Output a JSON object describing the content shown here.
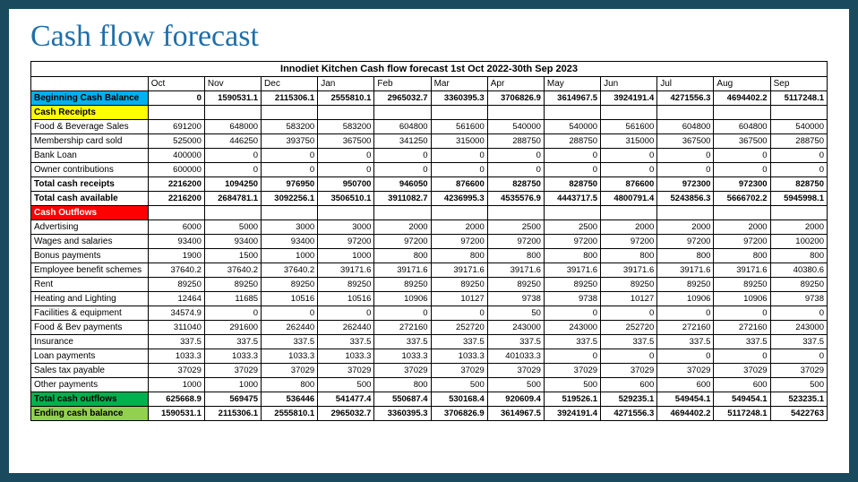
{
  "title": "Cash flow forecast",
  "table_title": "Innodiet Kitchen Cash flow forecast 1st Oct 2022-30th Sep 2023",
  "months": [
    "Oct",
    "Nov",
    "Dec",
    "Jan",
    "Feb",
    "Mar",
    "Apr",
    "May",
    "Jun",
    "Jul",
    "Aug",
    "Sep"
  ],
  "colors": {
    "page_bg": "#1a4a5e",
    "title_color": "#1f6ea8",
    "border": "#000000",
    "section_begin": "#00b0f0",
    "section_receipts": "#ffff00",
    "section_outflows": "#ff0000",
    "section_total_out": "#00b050",
    "section_end": "#92d050"
  },
  "fonts": {
    "title_pt": 34,
    "cell_pt": 9.5,
    "header_pt": 10
  },
  "rows": [
    {
      "type": "section",
      "bg": "cyan",
      "label": "Beginning Cash Balance",
      "bold": true,
      "values": [
        "0",
        "1590531.1",
        "2115306.1",
        "2555810.1",
        "2965032.7",
        "3360395.3",
        "3706826.9",
        "3614967.5",
        "3924191.4",
        "4271556.3",
        "4694402.2",
        "5117248.1"
      ]
    },
    {
      "type": "section",
      "bg": "yellow",
      "label": "Cash Receipts",
      "bold": true,
      "values": null
    },
    {
      "type": "data",
      "label": "Food & Beverage Sales",
      "values": [
        "691200",
        "648000",
        "583200",
        "583200",
        "604800",
        "561600",
        "540000",
        "540000",
        "561600",
        "604800",
        "604800",
        "540000"
      ]
    },
    {
      "type": "data",
      "label": "Membership card sold",
      "values": [
        "525000",
        "446250",
        "393750",
        "367500",
        "341250",
        "315000",
        "288750",
        "288750",
        "315000",
        "367500",
        "367500",
        "288750"
      ]
    },
    {
      "type": "data",
      "label": "Bank Loan",
      "values": [
        "400000",
        "0",
        "0",
        "0",
        "0",
        "0",
        "0",
        "0",
        "0",
        "0",
        "0",
        "0"
      ]
    },
    {
      "type": "data",
      "label": "Owner contributions",
      "values": [
        "600000",
        "0",
        "0",
        "0",
        "0",
        "0",
        "0",
        "0",
        "0",
        "0",
        "0",
        "0"
      ]
    },
    {
      "type": "data",
      "label": "Total cash receipts",
      "bold": true,
      "values": [
        "2216200",
        "1094250",
        "976950",
        "950700",
        "946050",
        "876600",
        "828750",
        "828750",
        "876600",
        "972300",
        "972300",
        "828750"
      ]
    },
    {
      "type": "data",
      "label": "Total cash available",
      "bold": true,
      "values": [
        "2216200",
        "2684781.1",
        "3092256.1",
        "3506510.1",
        "3911082.7",
        "4236995.3",
        "4535576.9",
        "4443717.5",
        "4800791.4",
        "5243856.3",
        "5666702.2",
        "5945998.1"
      ]
    },
    {
      "type": "section",
      "bg": "red",
      "label": "Cash Outflows",
      "bold": true,
      "values": null
    },
    {
      "type": "data",
      "label": "Advertising",
      "values": [
        "6000",
        "5000",
        "3000",
        "3000",
        "2000",
        "2000",
        "2500",
        "2500",
        "2000",
        "2000",
        "2000",
        "2000"
      ]
    },
    {
      "type": "data",
      "label": "Wages and salaries",
      "values": [
        "93400",
        "93400",
        "93400",
        "97200",
        "97200",
        "97200",
        "97200",
        "97200",
        "97200",
        "97200",
        "97200",
        "100200"
      ]
    },
    {
      "type": "data",
      "label": "Bonus payments",
      "values": [
        "1900",
        "1500",
        "1000",
        "1000",
        "800",
        "800",
        "800",
        "800",
        "800",
        "800",
        "800",
        "800"
      ]
    },
    {
      "type": "data",
      "label": "Employee benefit schemes",
      "values": [
        "37640.2",
        "37640.2",
        "37640.2",
        "39171.6",
        "39171.6",
        "39171.6",
        "39171.6",
        "39171.6",
        "39171.6",
        "39171.6",
        "39171.6",
        "40380.6"
      ]
    },
    {
      "type": "data",
      "label": "Rent",
      "values": [
        "89250",
        "89250",
        "89250",
        "89250",
        "89250",
        "89250",
        "89250",
        "89250",
        "89250",
        "89250",
        "89250",
        "89250"
      ]
    },
    {
      "type": "data",
      "label": "Heating and Lighting",
      "values": [
        "12464",
        "11685",
        "10516",
        "10516",
        "10906",
        "10127",
        "9738",
        "9738",
        "10127",
        "10906",
        "10906",
        "9738"
      ]
    },
    {
      "type": "data",
      "label": "Facilities & equipment",
      "values": [
        "34574.9",
        "0",
        "0",
        "0",
        "0",
        "0",
        "50",
        "0",
        "0",
        "0",
        "0",
        "0"
      ]
    },
    {
      "type": "data",
      "label": "Food & Bev payments",
      "values": [
        "311040",
        "291600",
        "262440",
        "262440",
        "272160",
        "252720",
        "243000",
        "243000",
        "252720",
        "272160",
        "272160",
        "243000"
      ]
    },
    {
      "type": "data",
      "label": "Insurance",
      "values": [
        "337.5",
        "337.5",
        "337.5",
        "337.5",
        "337.5",
        "337.5",
        "337.5",
        "337.5",
        "337.5",
        "337.5",
        "337.5",
        "337.5"
      ]
    },
    {
      "type": "data",
      "label": "Loan payments",
      "values": [
        "1033.3",
        "1033.3",
        "1033.3",
        "1033.3",
        "1033.3",
        "1033.3",
        "401033.3",
        "0",
        "0",
        "0",
        "0",
        "0"
      ]
    },
    {
      "type": "data",
      "label": "Sales tax payable",
      "values": [
        "37029",
        "37029",
        "37029",
        "37029",
        "37029",
        "37029",
        "37029",
        "37029",
        "37029",
        "37029",
        "37029",
        "37029"
      ]
    },
    {
      "type": "data",
      "label": "Other payments",
      "values": [
        "1000",
        "1000",
        "800",
        "500",
        "800",
        "500",
        "500",
        "500",
        "600",
        "600",
        "600",
        "500"
      ]
    },
    {
      "type": "section",
      "bg": "green",
      "label": "Total cash outflows",
      "bold": true,
      "values": [
        "625668.9",
        "569475",
        "536446",
        "541477.4",
        "550687.4",
        "530168.4",
        "920609.4",
        "519526.1",
        "529235.1",
        "549454.1",
        "549454.1",
        "523235.1"
      ]
    },
    {
      "type": "section",
      "bg": "lgreen",
      "label": "Ending cash balance",
      "bold": true,
      "values": [
        "1590531.1",
        "2115306.1",
        "2555810.1",
        "2965032.7",
        "3360395.3",
        "3706826.9",
        "3614967.5",
        "3924191.4",
        "4271556.3",
        "4694402.2",
        "5117248.1",
        "5422763"
      ]
    }
  ]
}
